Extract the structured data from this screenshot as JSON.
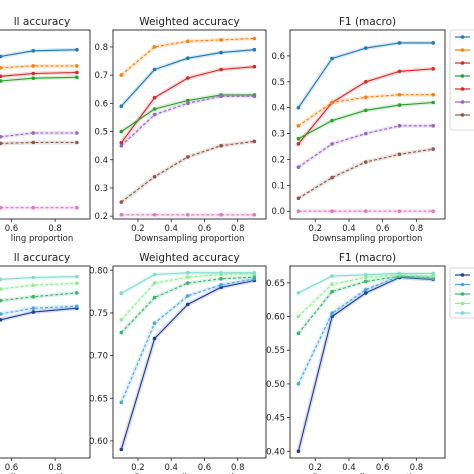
{
  "chart_data": [
    {
      "type": "line",
      "title": "ll accuracy",
      "xlabel": "ling proportion",
      "xticks": [
        "0.6",
        "0.8"
      ],
      "xlim": [
        0.52,
        0.96
      ],
      "ylim": [
        0,
        1
      ],
      "yticks": [],
      "grid": false,
      "series": [
        {
          "color": "#1f77b4",
          "style": "solid",
          "x": [
            0.55,
            0.7,
            0.9
          ],
          "y": [
            0.86,
            0.89,
            0.895
          ]
        },
        {
          "color": "#ff7f0e",
          "style": "dashed",
          "x": [
            0.55,
            0.7,
            0.9
          ],
          "y": [
            0.8,
            0.81,
            0.81
          ]
        },
        {
          "color": "#d62728",
          "style": "solid",
          "x": [
            0.55,
            0.7,
            0.9
          ],
          "y": [
            0.755,
            0.77,
            0.775
          ]
        },
        {
          "color": "#2ca02c",
          "style": "solid",
          "x": [
            0.55,
            0.7,
            0.9
          ],
          "y": [
            0.73,
            0.745,
            0.75
          ]
        },
        {
          "color": "#9467bd",
          "style": "dashed",
          "x": [
            0.55,
            0.7,
            0.9
          ],
          "y": [
            0.435,
            0.455,
            0.455
          ]
        },
        {
          "color": "#8c564b",
          "style": "dashed",
          "x": [
            0.55,
            0.7,
            0.9
          ],
          "y": [
            0.4,
            0.405,
            0.405
          ]
        },
        {
          "color": "#e377c2",
          "style": "dashed",
          "x": [
            0.55,
            0.7,
            0.9
          ],
          "y": [
            0.06,
            0.06,
            0.06
          ]
        }
      ]
    },
    {
      "type": "line",
      "title": "Weighted accuracy",
      "xlabel": "Downsampling proportion",
      "xticks": [
        "0.2",
        "0.4",
        "0.6",
        "0.8"
      ],
      "yticks": [
        "0.2",
        "0.3",
        "0.4",
        "0.5",
        "0.6",
        "0.7",
        "0.8"
      ],
      "xlim": [
        0.05,
        0.97
      ],
      "ylim": [
        0.19,
        0.86
      ],
      "grid": false,
      "series": [
        {
          "color": "#ff7f0e",
          "style": "dashed",
          "x": [
            0.1,
            0.3,
            0.5,
            0.7,
            0.9
          ],
          "y": [
            0.7,
            0.8,
            0.82,
            0.825,
            0.83
          ]
        },
        {
          "color": "#1f77b4",
          "style": "solid",
          "x": [
            0.1,
            0.3,
            0.5,
            0.7,
            0.9
          ],
          "y": [
            0.59,
            0.72,
            0.76,
            0.78,
            0.79
          ]
        },
        {
          "color": "#d62728",
          "style": "solid",
          "x": [
            0.1,
            0.3,
            0.5,
            0.7,
            0.9
          ],
          "y": [
            0.46,
            0.62,
            0.69,
            0.72,
            0.73
          ]
        },
        {
          "color": "#2ca02c",
          "style": "solid",
          "x": [
            0.1,
            0.3,
            0.5,
            0.7,
            0.9
          ],
          "y": [
            0.5,
            0.58,
            0.61,
            0.63,
            0.63
          ]
        },
        {
          "color": "#9467bd",
          "style": "dashed",
          "x": [
            0.1,
            0.3,
            0.5,
            0.7,
            0.9
          ],
          "y": [
            0.45,
            0.56,
            0.6,
            0.625,
            0.625
          ]
        },
        {
          "color": "#8c564b",
          "style": "dashed",
          "x": [
            0.1,
            0.3,
            0.5,
            0.7,
            0.9
          ],
          "y": [
            0.25,
            0.34,
            0.41,
            0.45,
            0.465
          ]
        },
        {
          "color": "#e377c2",
          "style": "dashed",
          "x": [
            0.1,
            0.3,
            0.5,
            0.7,
            0.9
          ],
          "y": [
            0.205,
            0.205,
            0.205,
            0.205,
            0.205
          ]
        }
      ]
    },
    {
      "type": "line",
      "title": "F1 (macro)",
      "xlabel": "Downsampling proportion",
      "xticks": [
        "0.2",
        "0.4",
        "0.6",
        "0.8"
      ],
      "yticks": [
        "0.0",
        "0.1",
        "0.2",
        "0.3",
        "0.4",
        "0.5",
        "0.6"
      ],
      "xlim": [
        0.05,
        0.97
      ],
      "ylim": [
        -0.03,
        0.7
      ],
      "grid": false,
      "series": [
        {
          "color": "#1f77b4",
          "style": "solid",
          "x": [
            0.1,
            0.3,
            0.5,
            0.7,
            0.9
          ],
          "y": [
            0.4,
            0.59,
            0.63,
            0.65,
            0.65
          ]
        },
        {
          "color": "#d62728",
          "style": "solid",
          "x": [
            0.1,
            0.3,
            0.5,
            0.7,
            0.9
          ],
          "y": [
            0.26,
            0.42,
            0.5,
            0.54,
            0.55
          ]
        },
        {
          "color": "#ff7f0e",
          "style": "dashed",
          "x": [
            0.1,
            0.3,
            0.5,
            0.7,
            0.9
          ],
          "y": [
            0.33,
            0.42,
            0.44,
            0.45,
            0.45
          ]
        },
        {
          "color": "#2ca02c",
          "style": "solid",
          "x": [
            0.1,
            0.3,
            0.5,
            0.7,
            0.9
          ],
          "y": [
            0.28,
            0.35,
            0.39,
            0.41,
            0.42
          ]
        },
        {
          "color": "#9467bd",
          "style": "dashed",
          "x": [
            0.1,
            0.3,
            0.5,
            0.7,
            0.9
          ],
          "y": [
            0.17,
            0.26,
            0.3,
            0.33,
            0.33
          ]
        },
        {
          "color": "#8c564b",
          "style": "dashed",
          "x": [
            0.1,
            0.3,
            0.5,
            0.7,
            0.9
          ],
          "y": [
            0.05,
            0.13,
            0.19,
            0.22,
            0.24
          ]
        },
        {
          "color": "#e377c2",
          "style": "dashed",
          "x": [
            0.1,
            0.3,
            0.5,
            0.7,
            0.9
          ],
          "y": [
            0.0,
            0.0,
            0.0,
            0.0,
            0.0
          ]
        }
      ]
    },
    {
      "type": "line",
      "title": "ll accuracy",
      "xlabel": "ling proportion",
      "xticks": [
        "0.6",
        "0.8"
      ],
      "xlim": [
        0.52,
        0.96
      ],
      "ylim": [
        0,
        1
      ],
      "yticks": [],
      "grid": false,
      "series": [
        {
          "color": "#1f3d99",
          "style": "solid",
          "x": [
            0.55,
            0.7,
            0.9
          ],
          "y": [
            0.72,
            0.76,
            0.78
          ]
        },
        {
          "color": "#4aa8e0",
          "style": "dashed",
          "x": [
            0.55,
            0.7,
            0.9
          ],
          "y": [
            0.75,
            0.78,
            0.79
          ]
        },
        {
          "color": "#3cb371",
          "style": "dashed",
          "x": [
            0.55,
            0.7,
            0.9
          ],
          "y": [
            0.82,
            0.84,
            0.86
          ]
        },
        {
          "color": "#90ee90",
          "style": "dashed",
          "x": [
            0.55,
            0.7,
            0.9
          ],
          "y": [
            0.88,
            0.9,
            0.91
          ]
        },
        {
          "color": "#7fdcc8",
          "style": "solid",
          "x": [
            0.55,
            0.7,
            0.9
          ],
          "y": [
            0.93,
            0.94,
            0.945
          ]
        }
      ]
    },
    {
      "type": "line",
      "title": "Weighted accuracy",
      "xlabel": "Downsampling proportion",
      "xticks": [
        "0.2",
        "0.4",
        "0.6",
        "0.8"
      ],
      "yticks": [
        "0.60",
        "0.65",
        "0.70",
        "0.75",
        "0.80"
      ],
      "xlim": [
        0.05,
        0.97
      ],
      "ylim": [
        0.58,
        0.805
      ],
      "grid": false,
      "series": [
        {
          "color": "#1f3d99",
          "style": "solid",
          "x": [
            0.1,
            0.3,
            0.5,
            0.7,
            0.9
          ],
          "y": [
            0.59,
            0.72,
            0.76,
            0.78,
            0.788
          ]
        },
        {
          "color": "#4aa8e0",
          "style": "dashed",
          "x": [
            0.1,
            0.3,
            0.5,
            0.7,
            0.9
          ],
          "y": [
            0.645,
            0.738,
            0.77,
            0.783,
            0.79
          ]
        },
        {
          "color": "#3cb371",
          "style": "dashed",
          "x": [
            0.1,
            0.3,
            0.5,
            0.7,
            0.9
          ],
          "y": [
            0.727,
            0.768,
            0.785,
            0.79,
            0.792
          ]
        },
        {
          "color": "#90ee90",
          "style": "dashed",
          "x": [
            0.1,
            0.3,
            0.5,
            0.7,
            0.9
          ],
          "y": [
            0.742,
            0.785,
            0.792,
            0.795,
            0.796
          ]
        },
        {
          "color": "#7fdcc8",
          "style": "solid",
          "x": [
            0.1,
            0.3,
            0.5,
            0.7,
            0.9
          ],
          "y": [
            0.773,
            0.795,
            0.797,
            0.797,
            0.797
          ]
        }
      ]
    },
    {
      "type": "line",
      "title": "F1 (macro)",
      "xlabel": "Downsampling proportion",
      "xticks": [
        "0.2",
        "0.4",
        "0.6",
        "0.8"
      ],
      "yticks": [
        "0.40",
        "0.45",
        "0.50",
        "0.55",
        "0.60",
        "0.65"
      ],
      "xlim": [
        0.05,
        0.97
      ],
      "ylim": [
        0.39,
        0.675
      ],
      "grid": false,
      "series": [
        {
          "color": "#1f3d99",
          "style": "solid",
          "x": [
            0.1,
            0.3,
            0.5,
            0.7,
            0.9
          ],
          "y": [
            0.4,
            0.6,
            0.635,
            0.658,
            0.655
          ]
        },
        {
          "color": "#4aa8e0",
          "style": "dashed",
          "x": [
            0.1,
            0.3,
            0.5,
            0.7,
            0.9
          ],
          "y": [
            0.5,
            0.605,
            0.64,
            0.66,
            0.656
          ]
        },
        {
          "color": "#3cb371",
          "style": "dashed",
          "x": [
            0.1,
            0.3,
            0.5,
            0.7,
            0.9
          ],
          "y": [
            0.575,
            0.637,
            0.652,
            0.66,
            0.658
          ]
        },
        {
          "color": "#90ee90",
          "style": "dashed",
          "x": [
            0.1,
            0.3,
            0.5,
            0.7,
            0.9
          ],
          "y": [
            0.6,
            0.648,
            0.658,
            0.662,
            0.66
          ]
        },
        {
          "color": "#7fdcc8",
          "style": "solid",
          "x": [
            0.1,
            0.3,
            0.5,
            0.7,
            0.9
          ],
          "y": [
            0.635,
            0.66,
            0.662,
            0.664,
            0.664
          ]
        }
      ]
    }
  ],
  "legends": [
    {
      "entries": [
        "#1f77b4",
        "#ff7f0e",
        "#d62728",
        "#2ca02c",
        "#d62728",
        "#9467bd",
        "#8c564b"
      ]
    },
    {
      "entries": [
        "#1f3d99",
        "#4aa8e0",
        "#3cb371",
        "#90ee90",
        "#7fdcc8"
      ]
    }
  ]
}
